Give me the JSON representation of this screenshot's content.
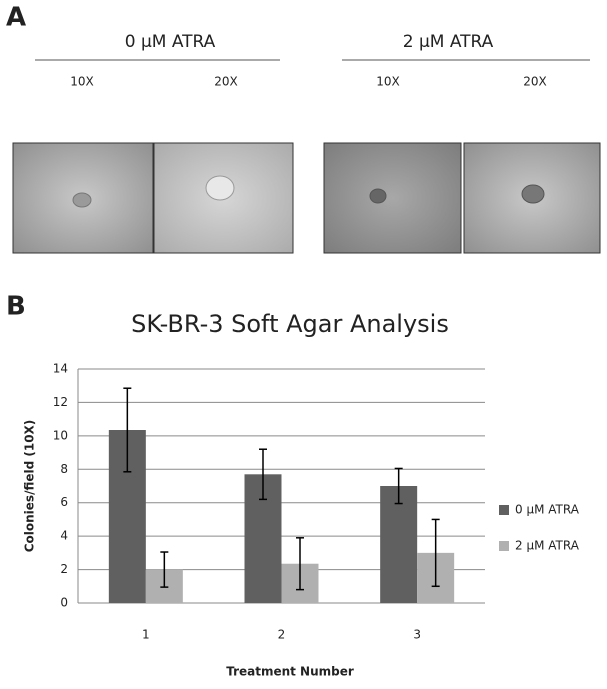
{
  "panel_a": {
    "label": "A",
    "groups": [
      {
        "title": "0 μM ATRA",
        "magnifications": [
          "10X",
          "20X"
        ]
      },
      {
        "title": "2 μM ATRA",
        "magnifications": [
          "10X",
          "20X"
        ]
      }
    ]
  },
  "panel_b": {
    "label": "B"
  },
  "chart_data": {
    "type": "bar",
    "title": "SK-BR-3 Soft Agar Analysis",
    "x_label": "Treatment Number",
    "y_label": "Colonies/field (10X)",
    "categories": [
      "1",
      "2",
      "3"
    ],
    "series": [
      {
        "name": "0 μM ATRA",
        "color": "#606060",
        "values": [
          10.35,
          7.7,
          7.0
        ],
        "errors": [
          2.5,
          1.5,
          1.05
        ]
      },
      {
        "name": "2 μM ATRA",
        "color": "#b0b0b0",
        "values": [
          2.0,
          2.35,
          3.0
        ],
        "errors": [
          1.05,
          1.55,
          2.0
        ]
      }
    ],
    "ylim": [
      0,
      14
    ],
    "yticks": [
      0,
      2,
      4,
      6,
      8,
      10,
      12,
      14
    ],
    "grid": true,
    "legend": "right"
  }
}
